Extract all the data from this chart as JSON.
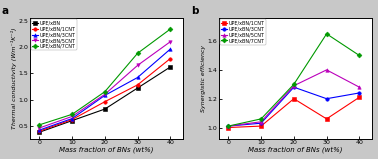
{
  "x": [
    0,
    10,
    20,
    30,
    40
  ],
  "plot_a": {
    "title": "a",
    "ylabel": "Thermal conductivity (Wm⁻¹K⁻¹)",
    "xlabel": "Mass fraction of BNs (wt%)",
    "ylim": [
      0.25,
      2.55
    ],
    "yticks": [
      0.5,
      1.0,
      1.5,
      2.0,
      2.5
    ],
    "series": [
      {
        "label": "UPE/xBN",
        "color": "#000000",
        "marker": "s",
        "data": [
          0.38,
          0.6,
          0.82,
          1.22,
          1.62
        ]
      },
      {
        "label": "UPE/xBN/1CNT",
        "color": "#ff0000",
        "marker": "o",
        "data": [
          0.4,
          0.62,
          0.96,
          1.28,
          1.78
        ]
      },
      {
        "label": "UPE/xBN/3CNT",
        "color": "#0000ff",
        "marker": "^",
        "data": [
          0.42,
          0.64,
          1.08,
          1.42,
          1.96
        ]
      },
      {
        "label": "UPE/xBN/5CNT",
        "color": "#bb00bb",
        "marker": "v",
        "data": [
          0.46,
          0.68,
          1.1,
          1.65,
          2.1
        ]
      },
      {
        "label": "UPE/xBN/7CNT",
        "color": "#009900",
        "marker": "D",
        "data": [
          0.52,
          0.72,
          1.15,
          1.88,
          2.34
        ]
      }
    ]
  },
  "plot_b": {
    "title": "b",
    "ylabel": "Synergistic efficiency",
    "xlabel": "Mass fraction of BNs (wt%)",
    "ylim": [
      0.92,
      1.76
    ],
    "yticks": [
      1.0,
      1.2,
      1.4,
      1.6
    ],
    "series": [
      {
        "label": "UPE/xBN/1CNT",
        "color": "#ff0000",
        "marker": "s",
        "data": [
          1.0,
          1.01,
          1.2,
          1.06,
          1.21
        ]
      },
      {
        "label": "UPE/xBN/3CNT",
        "color": "#0000ff",
        "marker": "o",
        "data": [
          1.01,
          1.03,
          1.28,
          1.2,
          1.24
        ]
      },
      {
        "label": "UPE/xBN/5CNT",
        "color": "#bb00bb",
        "marker": "^",
        "data": [
          1.01,
          1.04,
          1.29,
          1.4,
          1.28
        ]
      },
      {
        "label": "UPE/xBN/7CNT",
        "color": "#009900",
        "marker": "D",
        "data": [
          1.01,
          1.06,
          1.3,
          1.65,
          1.5
        ]
      }
    ]
  },
  "bg_color": "#c8c8c8",
  "plot_bg": "#ffffff"
}
